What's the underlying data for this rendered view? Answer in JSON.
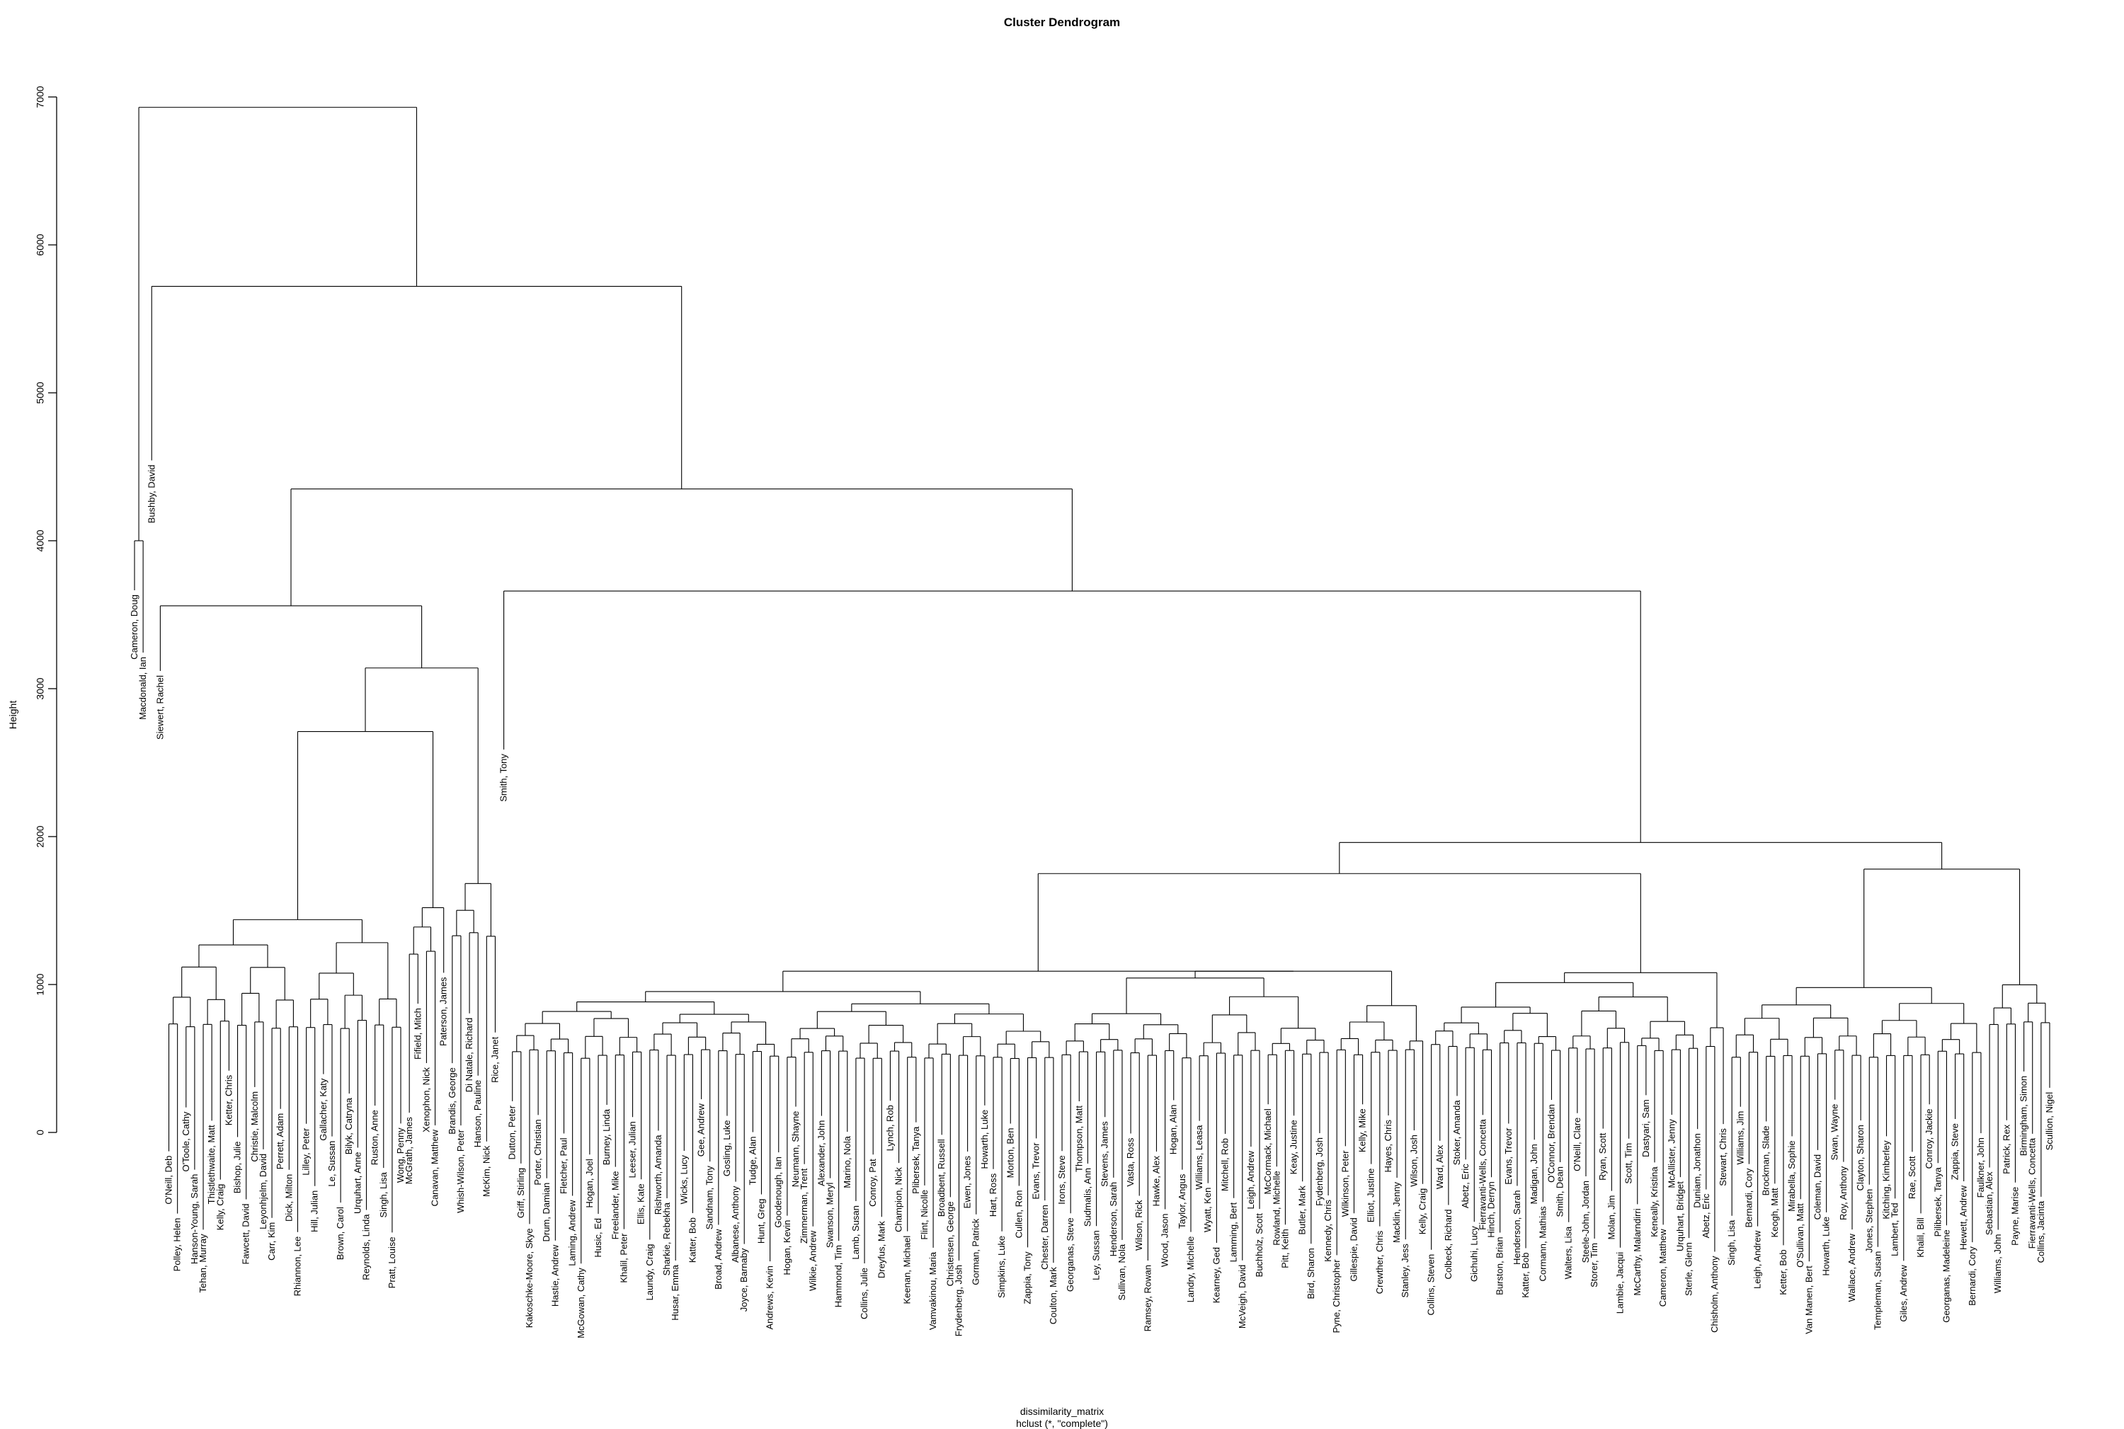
{
  "chart_data": {
    "type": "dendrogram",
    "title": "Cluster Dendrogram",
    "xlabel": "dissimilarity_matrix",
    "sub_label": "hclust (*, \"complete\")",
    "ylabel": "Height",
    "ylim": [
      0,
      7000
    ],
    "yticks": [
      0,
      1000,
      2000,
      3000,
      4000,
      5000,
      6000,
      7000
    ],
    "labels_order": [
      "Cameron, Doug",
      "Macdonald, Ian",
      "Bushby, David",
      "Siewert, Rachel",
      "O'Neill, Deb",
      "Polley, Helen",
      "O'Toole, Cathy",
      "Hanson-Young, Sarah",
      "Tehan, Murray",
      "Thistlethwaite, Matt",
      "Kelly, Craig",
      "Ketter, Chris",
      "Bishop, Julie",
      "Fawcett, David",
      "Christie, Malcolm",
      "Leyonhjelm, David",
      "Carr, Kim",
      "Perrett, Adam",
      "Dick, Milton",
      "Rhiannon, Lee",
      "Lilley, Peter",
      "Hill, Julian",
      "Gallacher, Katy",
      "Le, Sussan",
      "Brown, Carol",
      "Bilyk, Catryna",
      "Urquhart, Anne",
      "Reynolds, Linda",
      "Ruston, Anne",
      "Singh, Lisa",
      "Pratt, Louise",
      "Wong, Penny",
      "McGrath, James",
      "Fifield, Mitch",
      "Xenophon, Nick",
      "Canavan, Matthew",
      "Paterson, James",
      "Brandis, George",
      "Whish-Wilson, Peter",
      "Di Natale, Richard",
      "Hanson, Pauline",
      "McKim, Nick",
      "Rice, Janet",
      "Smith, Tony",
      "Dutton, Peter",
      "Griff, Stirling",
      "Kakoschke-Moore, Skye",
      "Porter, Christian",
      "Drum, Damian",
      "Hastie, Andrew",
      "Fletcher, Paul",
      "Laming, Andrew",
      "McGowan, Cathy",
      "Hogan, Joel",
      "Husic, Ed",
      "Burney, Linda",
      "Freelander, Mike",
      "Khalil, Peter",
      "Leeser, Julian",
      "Ellis, Kate",
      "Laundy, Craig",
      "Rishworth, Amanda",
      "Sharkie, Rebekha",
      "Husar, Emma",
      "Wicks, Lucy",
      "Katter, Bob",
      "Gee, Andrew",
      "Sandnam, Tony",
      "Broad, Andrew",
      "Gosling, Luke",
      "Albanese, Anthony",
      "Joyce, Barnaby",
      "Tudge, Alan",
      "Hunt, Greg",
      "Andrews, Kevin",
      "Goodenough, Ian",
      "Hogan, Kevin",
      "Neumann, Shayne",
      "Zimmerman, Trent",
      "Wilkie, Andrew",
      "Alexander, John",
      "Swanson, Meryl",
      "Hammond, Tim",
      "Marino, Nola",
      "Lamb, Susan",
      "Collins, Julie",
      "Conroy, Pat",
      "Dreyfus, Mark",
      "Lynch, Rob",
      "Champion, Nick",
      "Keenan, Michael",
      "Plibersek, Tanya",
      "Flint, Nicolle",
      "Vamvakinou, Maria",
      "Broadbent, Russell",
      "Christensen, George",
      "Frydenberg, Josh",
      "Ewen, Jones",
      "Gorman, Patrick",
      "Howarth, Luke",
      "Hart, Ross",
      "Simpkins, Luke",
      "Morton, Ben",
      "Cullen, Ron",
      "Zappia, Tony",
      "Evans, Trevor",
      "Chester, Darren",
      "Coulton, Mark",
      "Irons, Steve",
      "Georganas, Steve",
      "Thompson, Matt",
      "Sudmalis, Ann",
      "Ley, Sussan",
      "Stevens, James",
      "Henderson, Sarah",
      "Sullivan, Nola",
      "Vasta, Ross",
      "Wilson, Rick",
      "Ramsey, Rowan",
      "Hawke, Alex",
      "Wood, Jason",
      "Hogan, Alan",
      "Taylor, Angus",
      "Landry, Michelle",
      "Williams, Leasa",
      "Wyatt, Ken",
      "Kearney, Ged",
      "Mitchell, Rob",
      "Lamming, Bert",
      "McVeigh, David",
      "Leigh, Andrew",
      "Buchholz, Scott",
      "McCormack, Michael",
      "Rowland, Michelle",
      "Pitt, Keith",
      "Keay, Justine",
      "Butler, Mark",
      "Bird, Sharon",
      "Fydenberg, Josh",
      "Kennedy, Chris",
      "Pyne, Christopher",
      "Wilkinson, Peter",
      "Gillespie, David",
      "Kelly, Mike",
      "Elliot, Justine",
      "Crewther, Chris",
      "Hayes, Chris",
      "Macklin, Jenny",
      "Stanley, Jess",
      "Wilson, Josh",
      "Kelly, Craig",
      "Collins, Steven",
      "Ward, Alex",
      "Colbeck, Richard",
      "Stoker, Amanda",
      "Abetz, Eric",
      "Gichuhi, Lucy",
      "Fierravanti-Wells, Concetta",
      "Hinch, Derryn",
      "Burston, Brian",
      "Evans, Trevor",
      "Henderson, Sarah",
      "Katter, Bob",
      "Madigan, John",
      "Cormann, Mathias",
      "O'Connor, Brendan",
      "Smith, Dean",
      "Walters, Lisa",
      "O'Neill, Clare",
      "Steele-John, Jordan",
      "Storer, Tim",
      "Ryan, Scott",
      "Molan, Jim",
      "Lambie, Jacqui",
      "Scott, Tim",
      "McCarthy, Malarndirri",
      "Dastyari, Sam",
      "Keneally, Kristina",
      "Cameron, Matthew",
      "McAllister, Jenny",
      "Urquhart, Bridget",
      "Sterle, Glenn",
      "Duniam, Jonathon",
      "Abetz, Eric",
      "Chisholm, Anthony",
      "Stewart, Chris",
      "Singh, Lisa",
      "Williams, Jim",
      "Bernardi, Cory",
      "Leigh, Andrew",
      "Brockman, Slade",
      "Keogh, Matt",
      "Ketter, Bob",
      "Mirabella, Sophie",
      "O'Sullivan, Matt",
      "Van Manen, Bert",
      "Coleman, David",
      "Howarth, Luke",
      "Swan, Wayne",
      "Roy, Anthony",
      "Wallace, Andrew",
      "Clayton, Sharon",
      "Jones, Stephen",
      "Templeman, Susan",
      "Kitching, Kimberley",
      "Lambert, Ted",
      "Giles, Andrew",
      "Rae, Scott",
      "Khalil, Bill",
      "Conroy, Jackie",
      "Pilibersek, Tanya",
      "Georganas, Madeleine",
      "Zappia, Steve",
      "Hewett, Andrew",
      "Bernardi, Cory",
      "Faulkner, John",
      "Sebastian, Alex",
      "Williams, John",
      "Patrick, Rex",
      "Payne, Marise",
      "Birmingham, Simon",
      "Fierravanti-Wells, Concetta",
      "Collins, Jacinta",
      "Scullion, Nigel"
    ]
  }
}
